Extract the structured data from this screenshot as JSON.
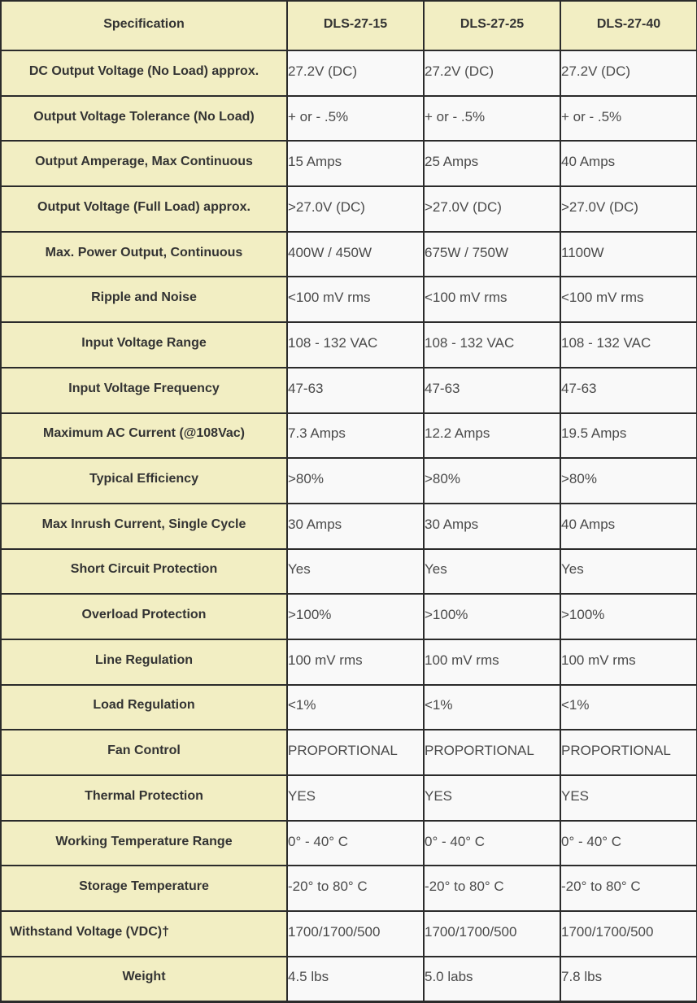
{
  "colors": {
    "header_bg": "#f2eec3",
    "label_bg": "#f2eec3",
    "value_bg": "#f9f9f9",
    "border": "#2b2b2b",
    "label_text": "#333333",
    "value_text": "#4a4a4a"
  },
  "table": {
    "columns": [
      "Specification",
      "DLS-27-15",
      "DLS-27-25",
      "DLS-27-40"
    ],
    "rows": [
      {
        "label": "DC Output Voltage (No Load) approx.",
        "values": [
          "27.2V (DC)",
          "27.2V (DC)",
          "27.2V (DC)"
        ]
      },
      {
        "label": "Output Voltage Tolerance (No Load)",
        "values": [
          "+ or - .5%",
          "+ or - .5%",
          "+ or - .5%"
        ]
      },
      {
        "label": "Output Amperage, Max Continuous",
        "values": [
          "15 Amps",
          "25 Amps",
          "40 Amps"
        ]
      },
      {
        "label": "Output Voltage (Full Load) approx.",
        "values": [
          ">27.0V (DC)",
          ">27.0V (DC)",
          ">27.0V (DC)"
        ]
      },
      {
        "label": "Max. Power Output, Continuous",
        "values": [
          "400W / 450W",
          "675W / 750W",
          "1100W"
        ]
      },
      {
        "label": "Ripple and Noise",
        "values": [
          "<100 mV rms",
          "<100 mV rms",
          "<100 mV rms"
        ]
      },
      {
        "label": "Input Voltage Range",
        "values": [
          "108 - 132 VAC",
          "108 - 132 VAC",
          "108 - 132 VAC"
        ]
      },
      {
        "label": "Input Voltage Frequency",
        "values": [
          "47-63",
          "47-63",
          "47-63"
        ]
      },
      {
        "label": "Maximum AC Current (@108Vac)",
        "values": [
          "7.3 Amps",
          "12.2 Amps",
          "19.5 Amps"
        ]
      },
      {
        "label": "Typical Efficiency",
        "values": [
          ">80%",
          ">80%",
          ">80%"
        ]
      },
      {
        "label": "Max Inrush Current, Single Cycle",
        "values": [
          "30 Amps",
          "30 Amps",
          "40 Amps"
        ]
      },
      {
        "label": "Short Circuit Protection",
        "values": [
          "Yes",
          "Yes",
          "Yes"
        ]
      },
      {
        "label": "Overload Protection",
        "values": [
          ">100%",
          ">100%",
          ">100%"
        ]
      },
      {
        "label": "Line Regulation",
        "values": [
          "100 mV rms",
          "100 mV rms",
          "100 mV rms"
        ]
      },
      {
        "label": "Load Regulation",
        "values": [
          "<1%",
          "<1%",
          "<1%"
        ]
      },
      {
        "label": "Fan Control",
        "values": [
          "PROPORTIONAL",
          "PROPORTIONAL",
          "PROPORTIONAL"
        ]
      },
      {
        "label": "Thermal Protection",
        "values": [
          "YES",
          "YES",
          "YES"
        ]
      },
      {
        "label": "Working Temperature Range",
        "values": [
          "0° - 40° C",
          "0° - 40° C",
          "0° - 40° C"
        ]
      },
      {
        "label": "Storage Temperature",
        "values": [
          "-20° to 80° C",
          "-20° to 80° C",
          "-20° to 80° C"
        ]
      },
      {
        "label": "Withstand Voltage (VDC)†",
        "align": "left",
        "values": [
          "1700/1700/500",
          "1700/1700/500",
          "1700/1700/500"
        ]
      },
      {
        "label": "Weight",
        "values": [
          "4.5 lbs",
          "5.0 labs",
          "7.8 lbs"
        ]
      }
    ]
  }
}
